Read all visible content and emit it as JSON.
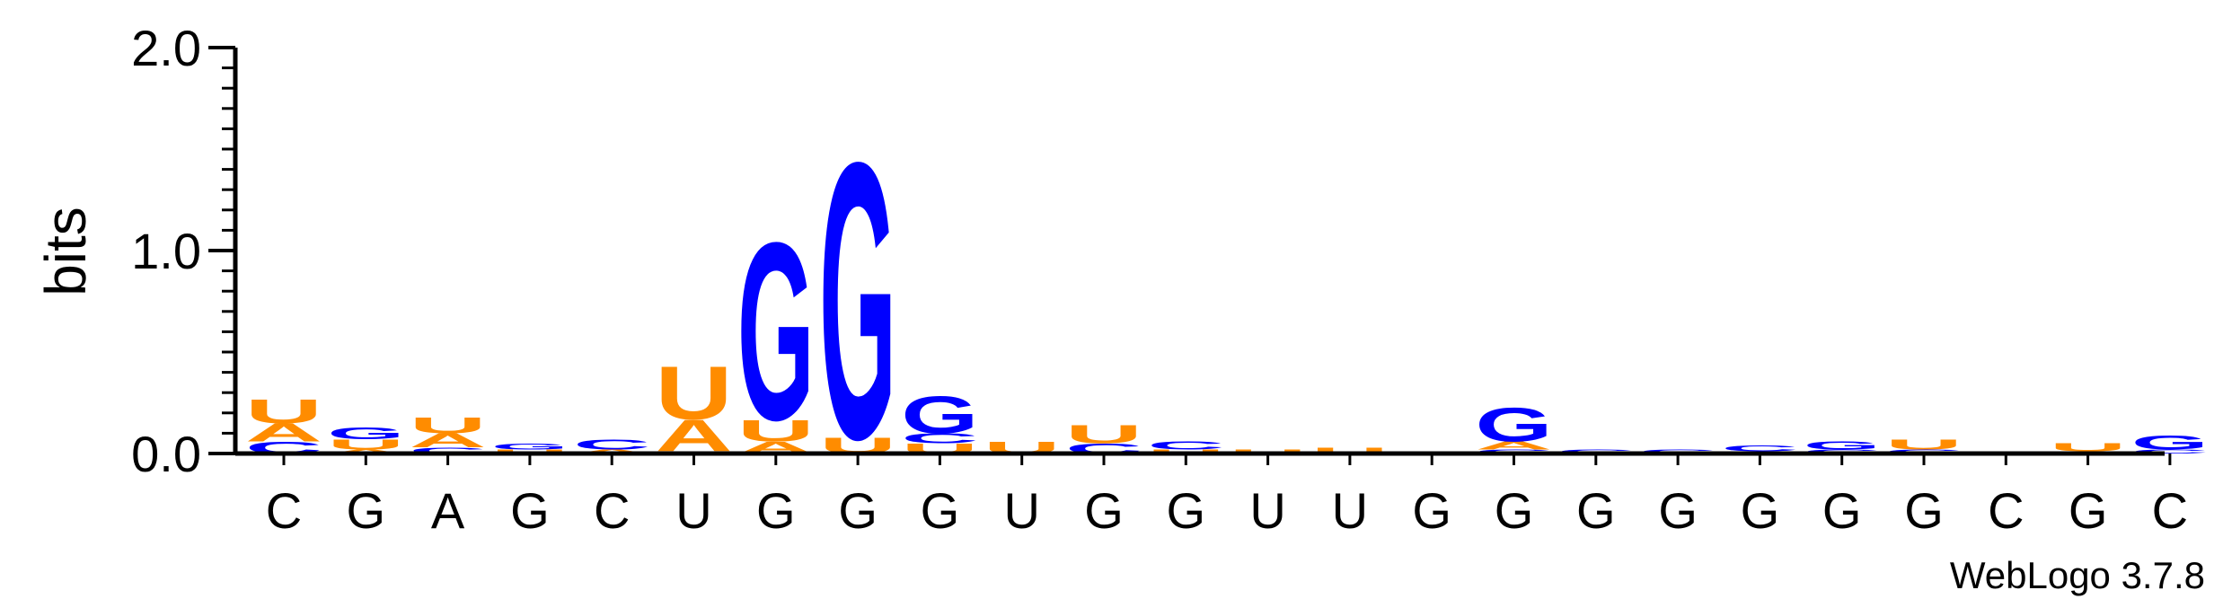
{
  "chart_data": {
    "type": "sequence-logo",
    "ylabel": "bits",
    "ylim": [
      0,
      2.0
    ],
    "yticks": [
      "0.0",
      "1.0",
      "2.0"
    ],
    "xlabels": [
      "C",
      "G",
      "A",
      "G",
      "C",
      "U",
      "G",
      "G",
      "G",
      "U",
      "G",
      "G",
      "U",
      "U",
      "G",
      "G",
      "G",
      "G",
      "G",
      "G",
      "G",
      "C",
      "G",
      "C"
    ],
    "colors": {
      "G": "#0000ff",
      "C": "#0000ff",
      "A": "#ff8c00",
      "U": "#ff8c00"
    },
    "positions": [
      [
        {
          "base": "C",
          "bits": 0.06
        },
        {
          "base": "A",
          "bits": 0.09
        },
        {
          "base": "U",
          "bits": 0.12
        }
      ],
      [
        {
          "base": "A",
          "bits": 0.02
        },
        {
          "base": "U",
          "bits": 0.05
        },
        {
          "base": "G",
          "bits": 0.06
        }
      ],
      [
        {
          "base": "C",
          "bits": 0.03
        },
        {
          "base": "A",
          "bits": 0.07
        },
        {
          "base": "U",
          "bits": 0.08
        }
      ],
      [
        {
          "base": "U",
          "bits": 0.02
        },
        {
          "base": "G",
          "bits": 0.03
        }
      ],
      [
        {
          "base": "A",
          "bits": 0.02
        },
        {
          "base": "C",
          "bits": 0.05
        }
      ],
      [
        {
          "base": "G",
          "bits": 0.01
        },
        {
          "base": "A",
          "bits": 0.16
        },
        {
          "base": "U",
          "bits": 0.27
        }
      ],
      [
        {
          "base": "A",
          "bits": 0.06
        },
        {
          "base": "U",
          "bits": 0.11
        },
        {
          "base": "G",
          "bits": 0.9
        }
      ],
      [
        {
          "base": "U",
          "bits": 0.08
        },
        {
          "base": "G",
          "bits": 1.4
        }
      ],
      [
        {
          "base": "U",
          "bits": 0.05
        },
        {
          "base": "C",
          "bits": 0.05
        },
        {
          "base": "G",
          "bits": 0.19
        }
      ],
      [
        {
          "base": "U",
          "bits": 0.06
        }
      ],
      [
        {
          "base": "C",
          "bits": 0.05
        },
        {
          "base": "U",
          "bits": 0.09
        }
      ],
      [
        {
          "base": "U",
          "bits": 0.02
        },
        {
          "base": "C",
          "bits": 0.04
        }
      ],
      [
        {
          "base": "U",
          "bits": 0.02
        }
      ],
      [
        {
          "base": "U",
          "bits": 0.03
        }
      ],
      [
        {
          "base": "G",
          "bits": 0.01
        }
      ],
      [
        {
          "base": "C",
          "bits": 0.02
        },
        {
          "base": "A",
          "bits": 0.04
        },
        {
          "base": "G",
          "bits": 0.17
        }
      ],
      [
        {
          "base": "C",
          "bits": 0.02
        }
      ],
      [
        {
          "base": "C",
          "bits": 0.02
        }
      ],
      [
        {
          "base": "A",
          "bits": 0.01
        },
        {
          "base": "C",
          "bits": 0.03
        }
      ],
      [
        {
          "base": "C",
          "bits": 0.02
        },
        {
          "base": "G",
          "bits": 0.04
        }
      ],
      [
        {
          "base": "C",
          "bits": 0.02
        },
        {
          "base": "U",
          "bits": 0.05
        }
      ],
      [],
      [
        {
          "base": "U",
          "bits": 0.01
        },
        {
          "base": "U",
          "bits": 0.04
        }
      ],
      [
        {
          "base": "C",
          "bits": 0.02
        },
        {
          "base": "G",
          "bits": 0.07
        }
      ]
    ],
    "credit": "WebLogo 3.7.8"
  }
}
